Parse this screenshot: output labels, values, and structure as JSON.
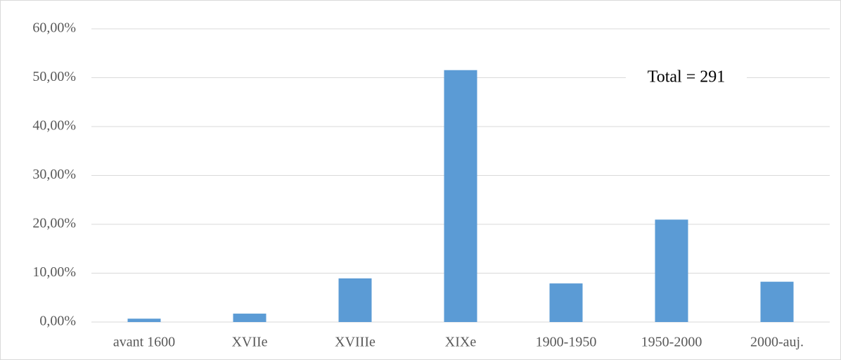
{
  "chart_data": {
    "type": "bar",
    "annotation": "Total = 291",
    "categories": [
      "avant 1600",
      "XVIIe",
      "XVIIIe",
      "XIXe",
      "1900-1950",
      "1950-2000",
      "2000-auj."
    ],
    "values": [
      0.69,
      1.72,
      8.93,
      51.55,
      7.9,
      20.96,
      8.25
    ],
    "color": "#5b9bd5",
    "ylim": [
      0,
      60
    ],
    "yticks": [
      {
        "value": 0,
        "label": "0,00%"
      },
      {
        "value": 10,
        "label": "10,00%"
      },
      {
        "value": 20,
        "label": "20,00%"
      },
      {
        "value": 30,
        "label": "30,00%"
      },
      {
        "value": 40,
        "label": "40,00%"
      },
      {
        "value": 50,
        "label": "50,00%"
      },
      {
        "value": 60,
        "label": "60,00%"
      }
    ],
    "grid": true
  }
}
